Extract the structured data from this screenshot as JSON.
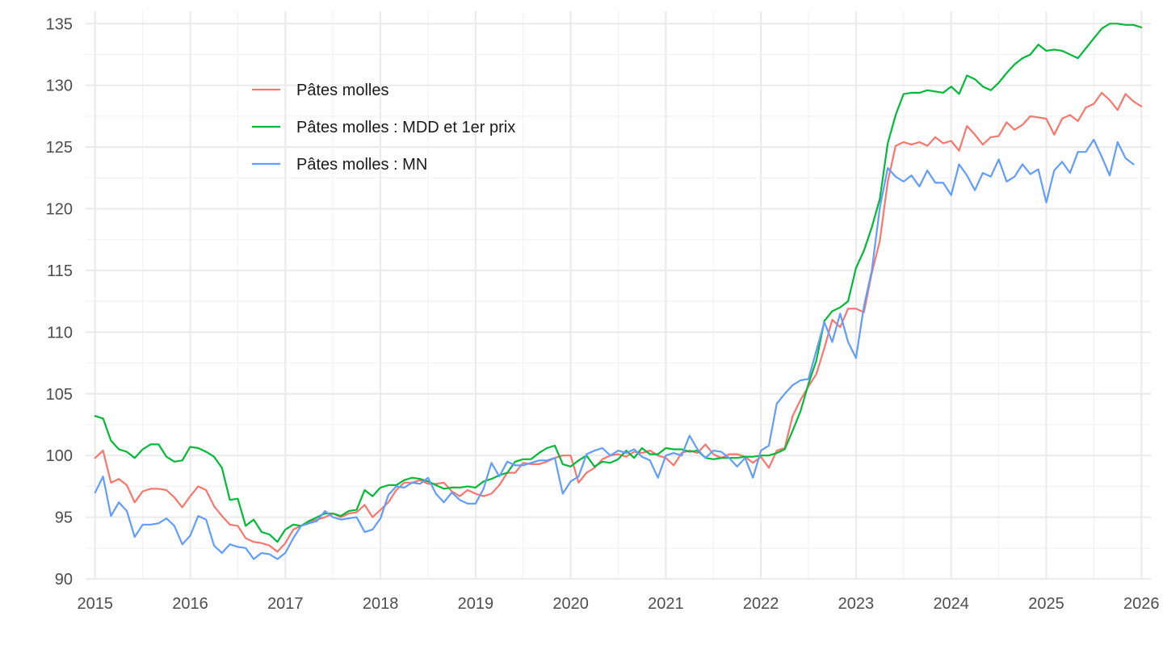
{
  "colors": {
    "background": "#ffffff",
    "grid_major": "#ebebeb",
    "grid_minor": "#f2f2f2",
    "tick_text": "#4d4d4d"
  },
  "chart_data": {
    "type": "line",
    "title": "",
    "xlabel": "",
    "ylabel": "",
    "x_range": [
      2014.9,
      2026.1
    ],
    "ylim": [
      90,
      136
    ],
    "x_ticks": [
      2015,
      2016,
      2017,
      2018,
      2019,
      2020,
      2021,
      2022,
      2023,
      2024,
      2025,
      2026
    ],
    "x_tick_labels": [
      "2015",
      "2016",
      "2017",
      "2018",
      "2019",
      "2020",
      "2021",
      "2022",
      "2023",
      "2024",
      "2025",
      "2026"
    ],
    "y_ticks": [
      90,
      95,
      100,
      105,
      110,
      115,
      120,
      125,
      130,
      135
    ],
    "y_tick_labels": [
      "90",
      "95",
      "100",
      "105",
      "110",
      "115",
      "120",
      "125",
      "130",
      "135"
    ],
    "grid": true,
    "legend_position": "top-left (inside)",
    "x_start": "2015-01",
    "x_frequency": "monthly",
    "series": [
      {
        "name": "Pâtes molles",
        "color": "#F8766D",
        "values": [
          99.8,
          100.4,
          97.8,
          98.1,
          97.6,
          96.2,
          97.1,
          97.3,
          97.3,
          97.2,
          96.6,
          95.8,
          96.7,
          97.5,
          97.2,
          95.9,
          95.1,
          94.4,
          94.3,
          93.3,
          93.0,
          92.9,
          92.7,
          92.2,
          92.9,
          94.0,
          94.3,
          94.6,
          94.8,
          95.0,
          95.3,
          95.0,
          95.3,
          95.4,
          96.0,
          95.0,
          95.6,
          96.2,
          97.2,
          97.8,
          97.8,
          98.0,
          97.7,
          97.7,
          97.8,
          97.1,
          96.7,
          97.2,
          96.9,
          96.7,
          96.9,
          97.6,
          98.6,
          98.6,
          99.4,
          99.3,
          99.3,
          99.5,
          99.8,
          100.0,
          100.0,
          97.8,
          98.6,
          99.0,
          99.7,
          100.0,
          100.1,
          99.9,
          100.3,
          100.2,
          100.4,
          100.0,
          99.8,
          99.2,
          100.2,
          100.4,
          100.2,
          100.9,
          100.1,
          99.8,
          100.1,
          100.1,
          99.9,
          99.4,
          99.9,
          99.0,
          100.4,
          100.6,
          103.2,
          104.5,
          105.6,
          106.6,
          108.7,
          111.0,
          110.4,
          111.9,
          111.9,
          111.6,
          114.8,
          117.4,
          122.2,
          125.1,
          125.4,
          125.2,
          125.4,
          125.1,
          125.8,
          125.3,
          125.5,
          124.7,
          126.7,
          126.0,
          125.2,
          125.8,
          125.9,
          127.0,
          126.4,
          126.8,
          127.5,
          127.4,
          127.3,
          126.0,
          127.3,
          127.6,
          127.1,
          128.2,
          128.5,
          129.4,
          128.8,
          128.0,
          129.3,
          128.7,
          128.3
        ]
      },
      {
        "name": "Pâtes molles : MDD et 1er prix",
        "color": "#00BA38",
        "values": [
          103.2,
          103.0,
          101.2,
          100.5,
          100.3,
          99.8,
          100.5,
          100.9,
          100.9,
          99.9,
          99.5,
          99.6,
          100.7,
          100.6,
          100.3,
          99.9,
          99.0,
          96.4,
          96.5,
          94.3,
          94.8,
          93.8,
          93.6,
          93.0,
          94.0,
          94.4,
          94.3,
          94.7,
          95.0,
          95.3,
          95.3,
          95.1,
          95.5,
          95.6,
          97.2,
          96.7,
          97.4,
          97.6,
          97.6,
          98.0,
          98.2,
          98.1,
          97.9,
          97.6,
          97.3,
          97.4,
          97.4,
          97.5,
          97.4,
          97.9,
          98.1,
          98.4,
          98.6,
          99.5,
          99.7,
          99.7,
          100.2,
          100.6,
          100.8,
          99.3,
          99.1,
          99.6,
          100.0,
          99.1,
          99.5,
          99.4,
          99.7,
          100.4,
          99.8,
          100.6,
          100.1,
          100.1,
          100.6,
          100.5,
          100.5,
          100.3,
          100.4,
          99.8,
          99.7,
          99.8,
          99.8,
          99.8,
          99.9,
          99.9,
          100.0,
          100.0,
          100.2,
          100.5,
          102.0,
          103.6,
          105.8,
          107.7,
          110.9,
          111.7,
          112.0,
          112.5,
          115.2,
          116.6,
          118.5,
          120.8,
          125.3,
          127.6,
          129.3,
          129.4,
          129.4,
          129.6,
          129.5,
          129.4,
          129.9,
          129.3,
          130.8,
          130.5,
          129.9,
          129.6,
          130.2,
          131.0,
          131.7,
          132.2,
          132.5,
          133.3,
          132.8,
          132.9,
          132.8,
          132.5,
          132.2,
          133.0,
          133.8,
          134.6,
          135.0,
          135.0,
          134.9,
          134.9,
          134.7
        ]
      },
      {
        "name": "Pâtes molles : MN",
        "color": "#619CFF",
        "values": [
          97.0,
          98.3,
          95.1,
          96.2,
          95.5,
          93.4,
          94.4,
          94.4,
          94.5,
          94.9,
          94.3,
          92.8,
          93.5,
          95.1,
          94.8,
          92.7,
          92.1,
          92.8,
          92.6,
          92.5,
          91.6,
          92.1,
          92.0,
          91.6,
          92.1,
          93.3,
          94.3,
          94.5,
          94.7,
          95.5,
          95.0,
          94.8,
          94.9,
          95.0,
          93.8,
          94.0,
          94.9,
          96.8,
          97.5,
          97.4,
          97.8,
          97.7,
          98.2,
          96.9,
          96.2,
          97.0,
          96.4,
          96.1,
          96.1,
          97.3,
          99.4,
          98.3,
          99.5,
          99.2,
          99.2,
          99.4,
          99.6,
          99.6,
          99.8,
          96.9,
          97.9,
          98.3,
          100.1,
          100.4,
          100.6,
          100.0,
          100.4,
          100.2,
          100.5,
          99.9,
          99.6,
          98.2,
          100.0,
          100.2,
          100.0,
          101.6,
          100.5,
          99.8,
          100.4,
          100.3,
          99.8,
          99.1,
          99.8,
          98.2,
          100.4,
          100.8,
          104.2,
          105.0,
          105.7,
          106.1,
          106.2,
          108.5,
          110.8,
          109.2,
          111.5,
          109.2,
          107.9,
          112.1,
          115.0,
          120.1,
          123.3,
          122.6,
          122.2,
          122.7,
          121.8,
          123.1,
          122.1,
          122.1,
          121.1,
          123.6,
          122.7,
          121.5,
          122.9,
          122.6,
          124.0,
          122.2,
          122.6,
          123.6,
          122.8,
          123.2,
          120.5,
          123.1,
          123.8,
          122.9,
          124.6,
          124.6,
          125.6,
          124.2,
          122.7,
          125.4,
          124.1,
          123.6
        ]
      }
    ]
  }
}
